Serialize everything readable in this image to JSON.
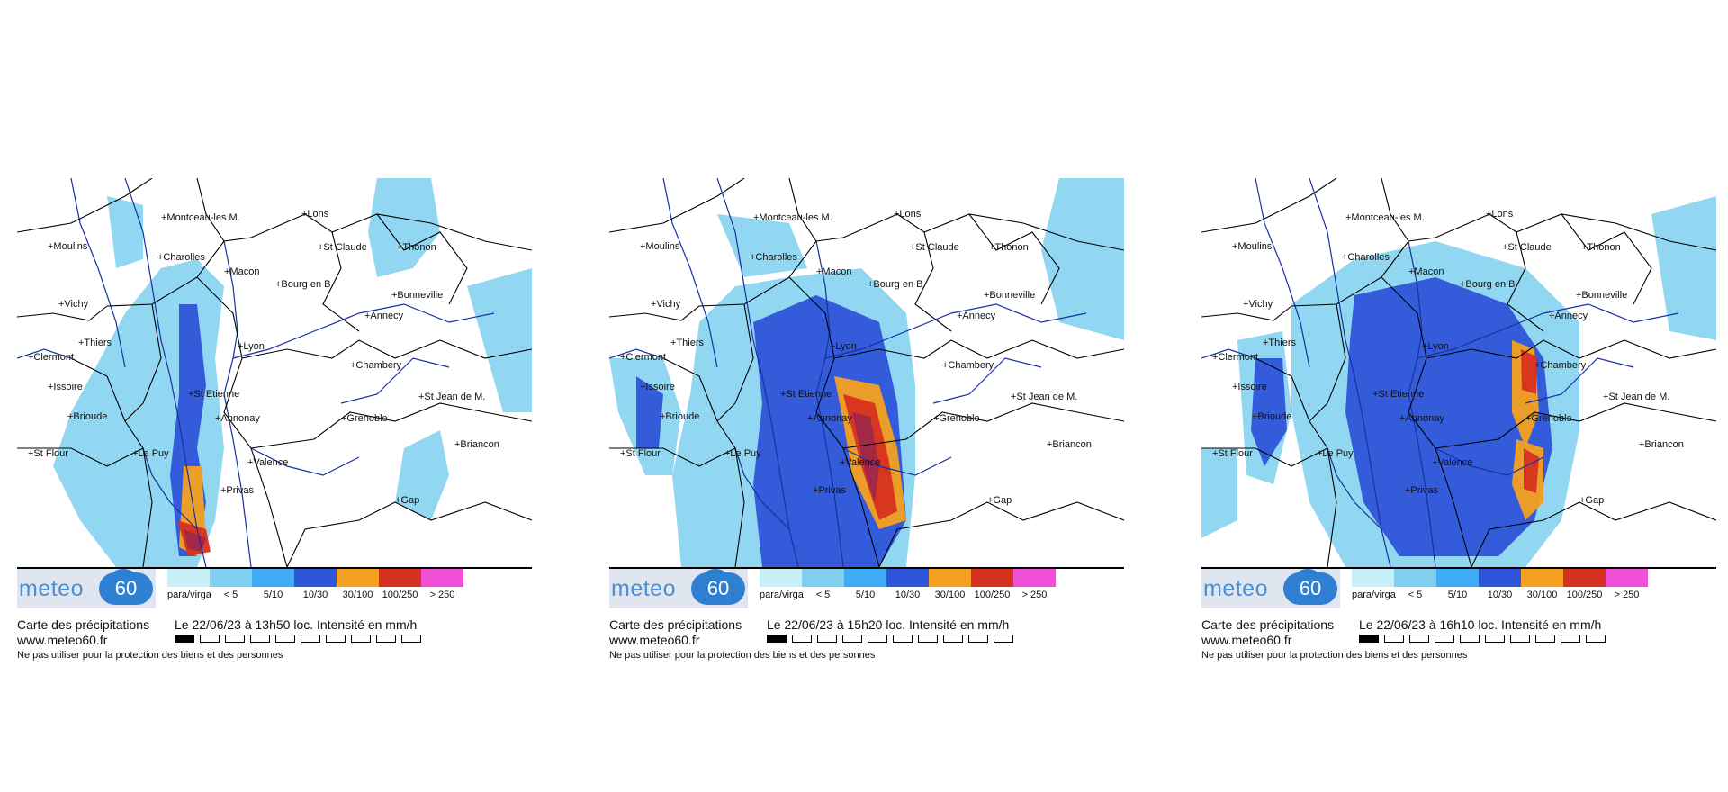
{
  "colors": {
    "para": "#c8f0fa",
    "lt5": "#7fd0f0",
    "c5_10": "#40aaf5",
    "c10_30": "#2f55d8",
    "c30_100": "#f5a020",
    "c100_250": "#d83020",
    "gt250": "#f050d8",
    "dark": "#a02848"
  },
  "logo": {
    "text": "meteo",
    "number": "60"
  },
  "legend_labels": [
    "para/virga",
    "< 5",
    "5/10",
    "10/30",
    "30/100",
    "100/250",
    "> 250"
  ],
  "caption": {
    "title": "Carte des précipitations",
    "website": "www.meteo60.fr",
    "disclaimer": "Ne pas utiliser pour la protection des biens et des personnes"
  },
  "cities": [
    "+Montceau-les M.",
    "+Lons",
    "+Moulins",
    "+St Claude",
    "+Thonon",
    "+Charolles",
    "+Macon",
    "+Bourg en B.",
    "+Bonneville",
    "+Vichy",
    "+Annecy",
    "+Thiers",
    "+Lyon",
    "+Clermont",
    "+Chambery",
    "+Issoire",
    "+St Etienne",
    "+St Jean de M.",
    "+Brioude",
    "+Annonay",
    "+Grenoble",
    "+Briancon",
    "+St Flour",
    "+Le Puy",
    "+Valence",
    "+Privas",
    "+Gap"
  ],
  "panels": [
    {
      "timestamp": "Le 22/06/23 à 13h50 loc. Intensité en mm/h",
      "active_frame": 0
    },
    {
      "timestamp": "Le 22/06/23 à 15h20 loc. Intensité en mm/h",
      "active_frame": 0
    },
    {
      "timestamp": "Le 22/06/23 à 16h10 loc. Intensité en mm/h",
      "active_frame": 0
    }
  ]
}
